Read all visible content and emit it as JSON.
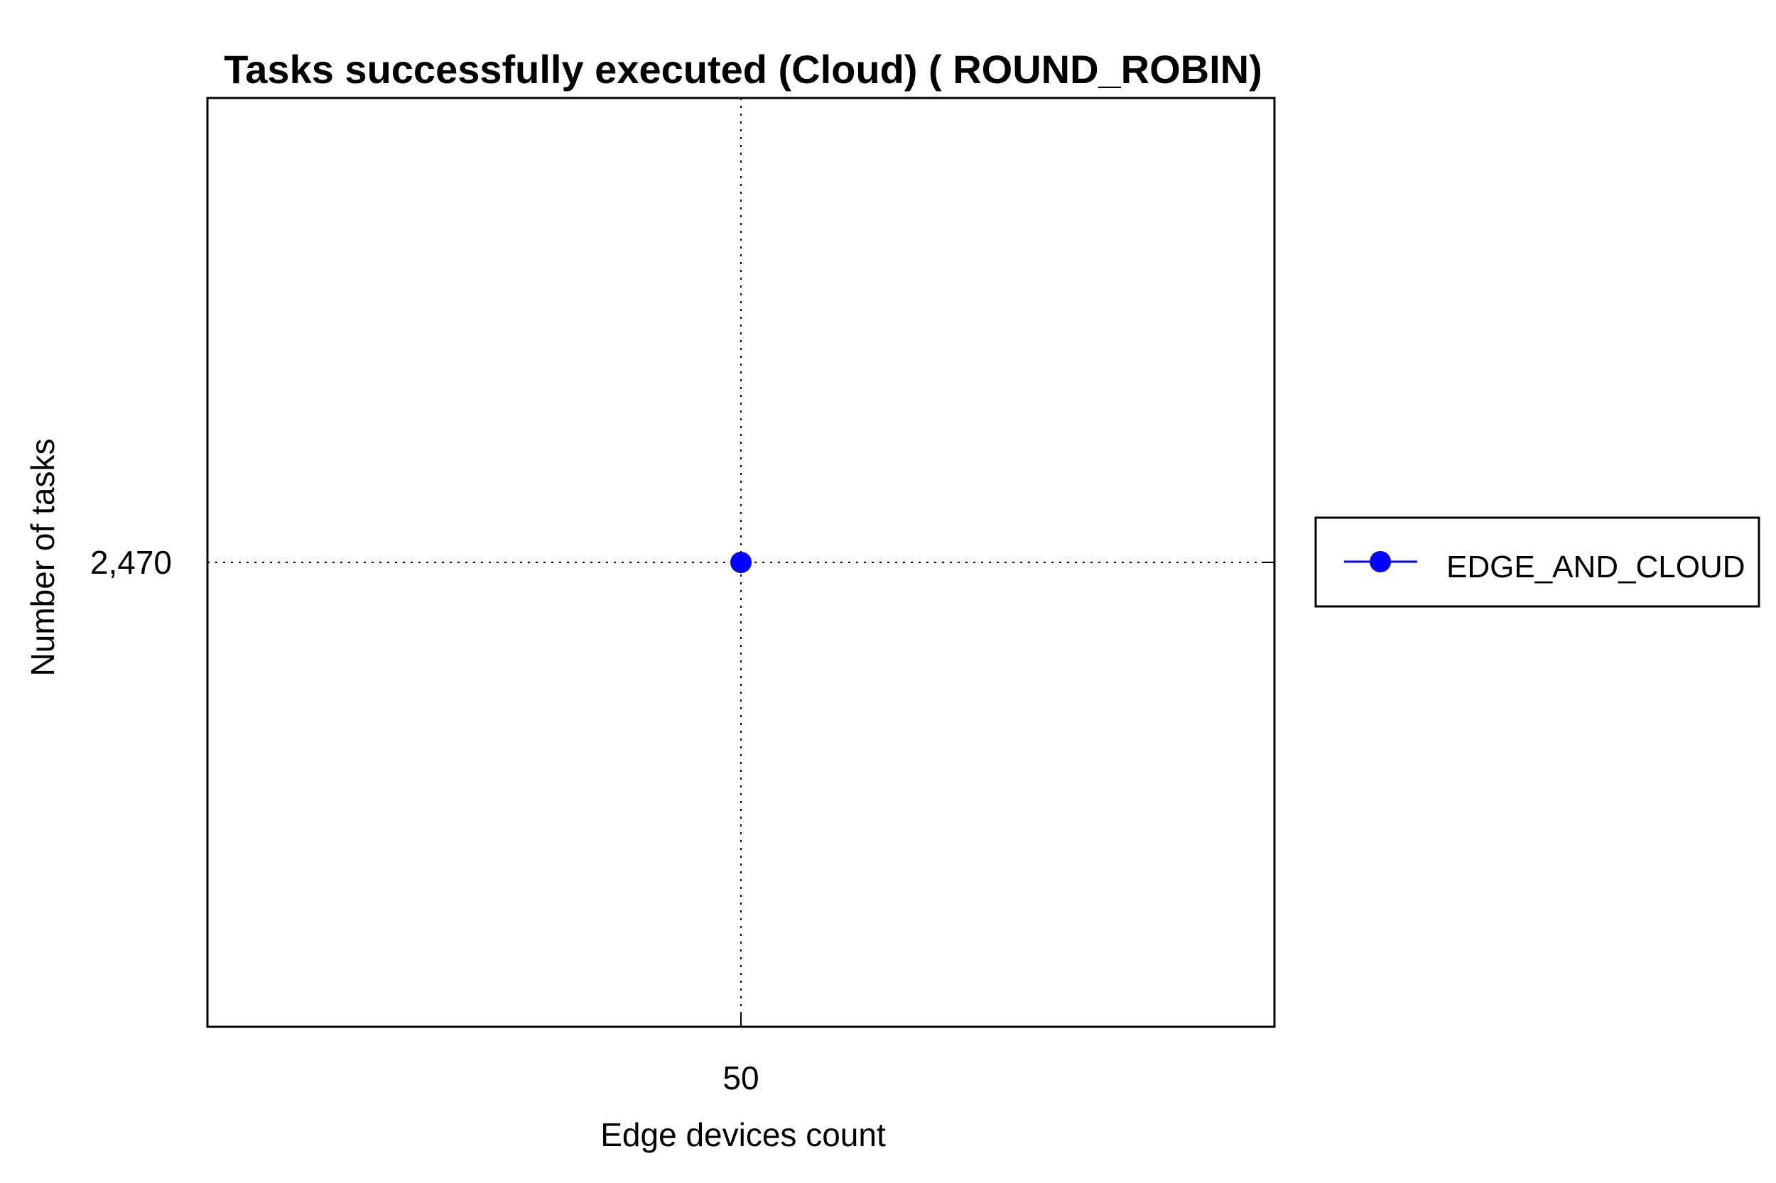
{
  "chart_data": {
    "type": "line",
    "title": "Tasks successfully executed (Cloud) ( ROUND_ROBIN)",
    "xlabel": "Edge devices count",
    "ylabel": "Number of tasks",
    "x_ticks": [
      "50"
    ],
    "y_ticks": [
      "2,470"
    ],
    "xlim": [
      0,
      100
    ],
    "ylim": [
      1970,
      2970
    ],
    "grid": true,
    "legend_position": "right",
    "series": [
      {
        "name": "EDGE_AND_CLOUD",
        "color": "#0000ff",
        "marker": "circle",
        "x": [
          50
        ],
        "y": [
          2470
        ]
      }
    ]
  }
}
